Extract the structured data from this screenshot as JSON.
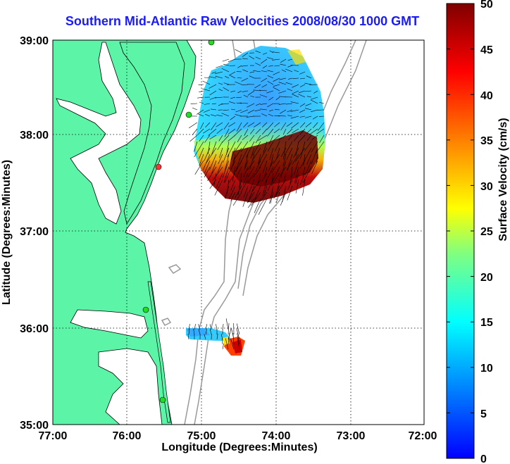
{
  "title": "Southern Mid-Atlantic Raw Velocities 2008/08/30 1000 GMT",
  "xaxis": {
    "label": "Longitude (Degrees:Minutes)",
    "ticks": [
      "77:00",
      "76:00",
      "75:00",
      "74:00",
      "73:00",
      "72:00"
    ]
  },
  "yaxis": {
    "label": "Latitude (Degrees:Minutes)",
    "ticks": [
      "39:00",
      "38:00",
      "37:00",
      "36:00",
      "35:00"
    ]
  },
  "colorbar": {
    "label": "Surface Velocity (cm/s)",
    "ticks": [
      "50",
      "45",
      "40",
      "35",
      "30",
      "25",
      "20",
      "15",
      "10",
      "5",
      "0"
    ],
    "range": [
      0,
      50
    ],
    "colormap": "jet"
  },
  "colors": {
    "land": "#5cf5a8",
    "water": "#ffffff",
    "title": "#1a1aff",
    "bathymetry": "#999999",
    "station": "#22dd22",
    "station_alt": "#ff3333"
  },
  "map": {
    "lon_range": [
      -77,
      -72
    ],
    "lat_range": [
      35,
      39
    ],
    "grid": true
  }
}
